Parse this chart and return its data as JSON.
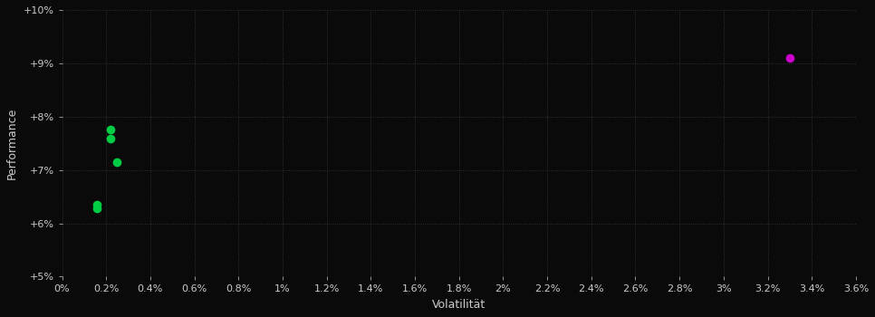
{
  "xlabel": "Volatilität",
  "ylabel": "Performance",
  "background_color": "#0a0a0a",
  "grid_color": "#2a2a2a",
  "text_color": "#cccccc",
  "green_points": [
    [
      0.0022,
      0.0775
    ],
    [
      0.0022,
      0.0758
    ],
    [
      0.0025,
      0.0715
    ],
    [
      0.0016,
      0.0635
    ],
    [
      0.0016,
      0.0628
    ]
  ],
  "magenta_points": [
    [
      0.033,
      0.091
    ]
  ],
  "xlim": [
    0.0,
    0.036
  ],
  "ylim": [
    0.05,
    0.1
  ],
  "xticks": [
    0.0,
    0.002,
    0.004,
    0.006,
    0.008,
    0.01,
    0.012,
    0.014,
    0.016,
    0.018,
    0.02,
    0.022,
    0.024,
    0.026,
    0.028,
    0.03,
    0.032,
    0.034,
    0.036
  ],
  "yticks": [
    0.05,
    0.06,
    0.07,
    0.08,
    0.09,
    0.1
  ],
  "xtick_labels": [
    "0%",
    "0.2%",
    "0.4%",
    "0.6%",
    "0.8%",
    "1%",
    "1.2%",
    "1.4%",
    "1.6%",
    "1.8%",
    "2%",
    "2.2%",
    "2.4%",
    "2.6%",
    "2.8%",
    "3%",
    "3.2%",
    "3.4%",
    "3.6%"
  ],
  "ytick_labels": [
    "+5%",
    "+6%",
    "+7%",
    "+8%",
    "+9%",
    "+10%"
  ],
  "marker_size": 7,
  "green_color": "#00cc44",
  "magenta_color": "#cc00cc"
}
